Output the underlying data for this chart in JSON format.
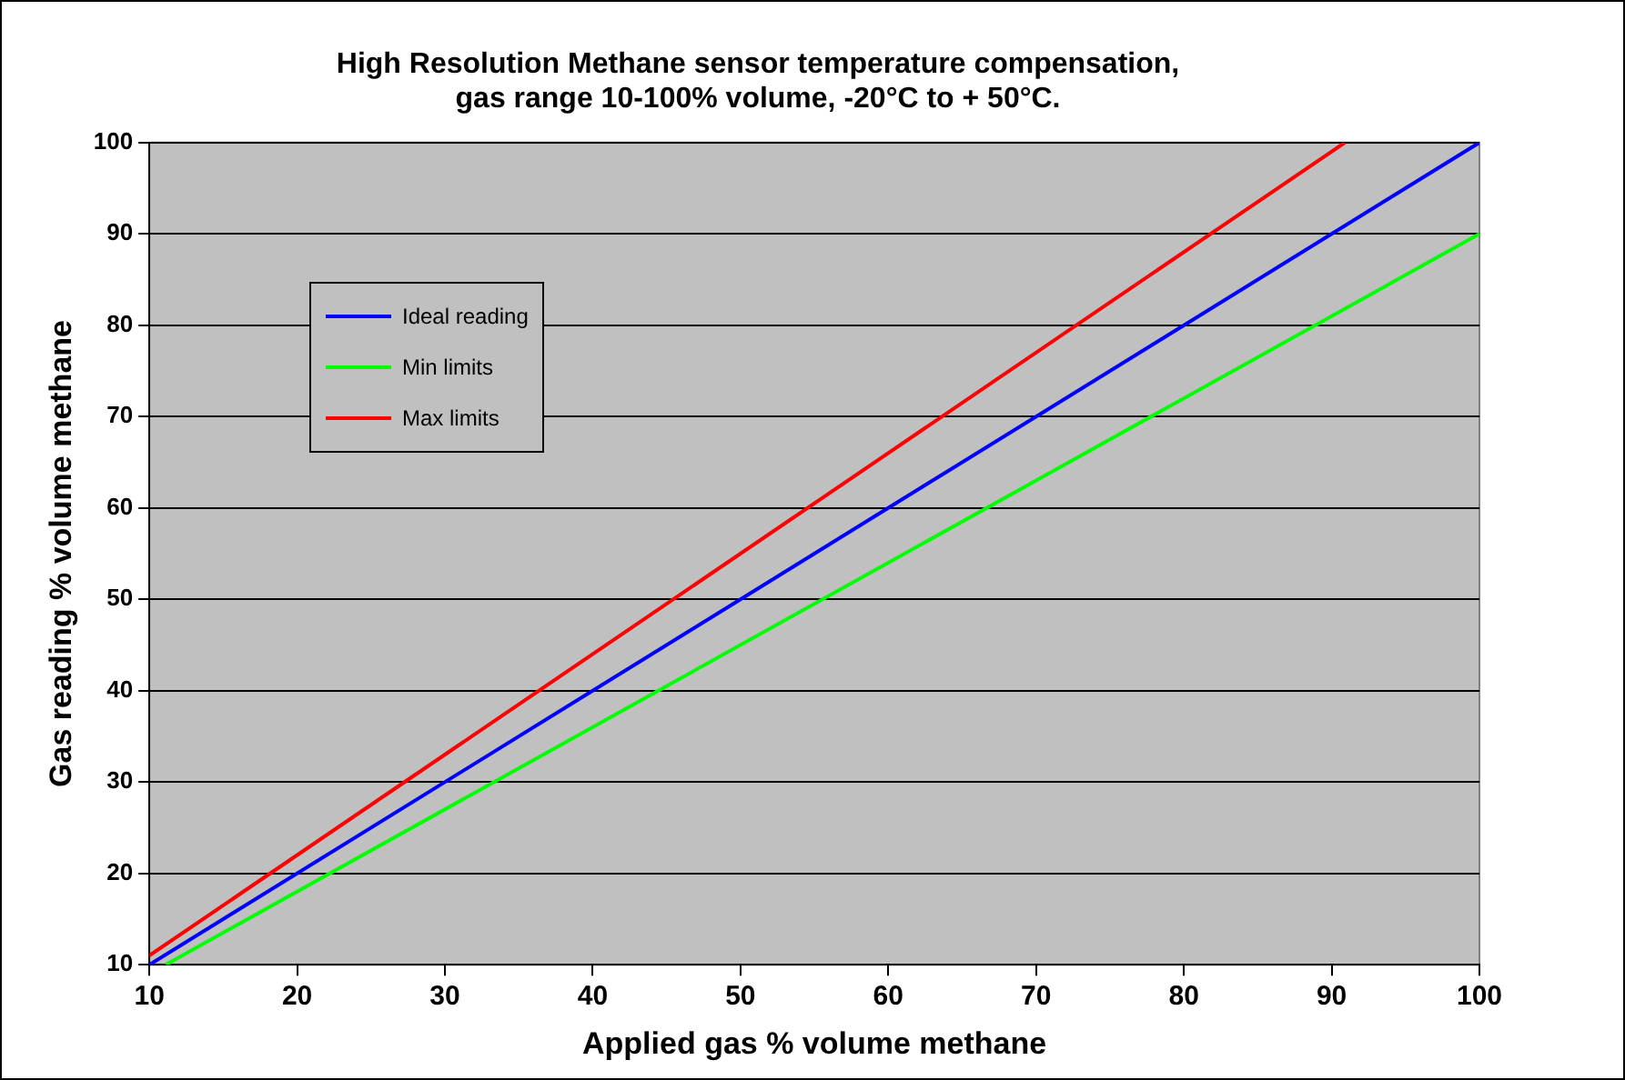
{
  "chart_data": {
    "type": "line",
    "title": "High Resolution Methane sensor temperature compensation,\ngas range 10-100% volume, -20°C to + 50°C.",
    "xlabel": "Applied gas % volume methane",
    "ylabel": "Gas reading % volume methane",
    "series": [
      {
        "name": "Ideal reading",
        "color": "#0000ff",
        "x": [
          10,
          100
        ],
        "values": [
          10,
          100
        ]
      },
      {
        "name": "Min limits",
        "color": "#00ff00",
        "x": [
          11.1,
          100
        ],
        "values": [
          10,
          90
        ]
      },
      {
        "name": "Max limits",
        "color": "#ff0000",
        "x": [
          10,
          90.9
        ],
        "values": [
          11,
          100
        ]
      }
    ],
    "xlim": [
      10,
      100
    ],
    "xticks": [
      10,
      20,
      30,
      40,
      50,
      60,
      70,
      80,
      90,
      100
    ],
    "ylim": [
      10,
      100
    ],
    "yticks": [
      10,
      20,
      30,
      40,
      50,
      60,
      70,
      80,
      90,
      100
    ],
    "grid": "y",
    "legend": "top left",
    "marker": "none",
    "line_style": "solid"
  }
}
